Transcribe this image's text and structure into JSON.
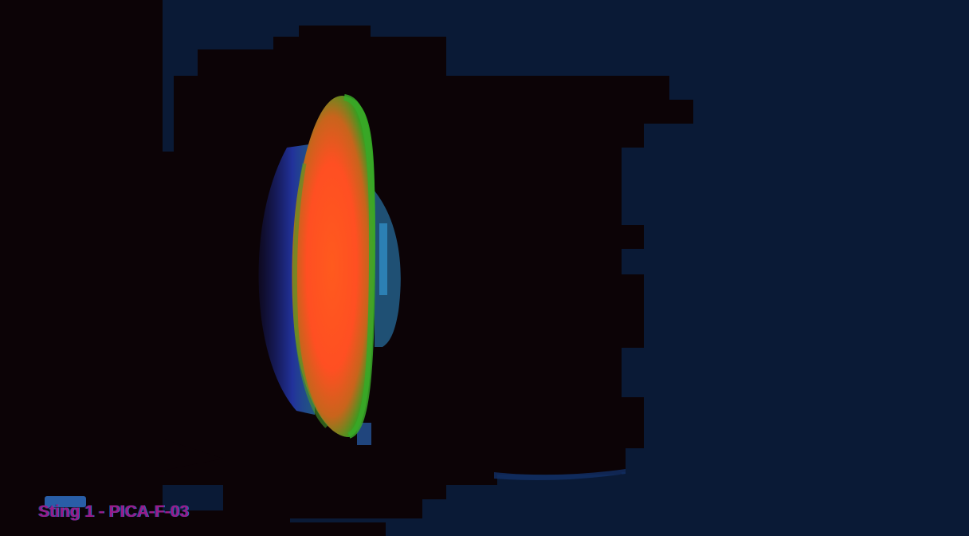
{
  "image": {
    "caption": "Sting 1 - PICA-F-03",
    "colors": {
      "background": "#0a1a36",
      "shadow": "#0c0306",
      "glow_core": "#ff5a1e",
      "glow_edge": "#2fa020",
      "halo": "#2840c8",
      "caption": "#9a1a88"
    }
  }
}
